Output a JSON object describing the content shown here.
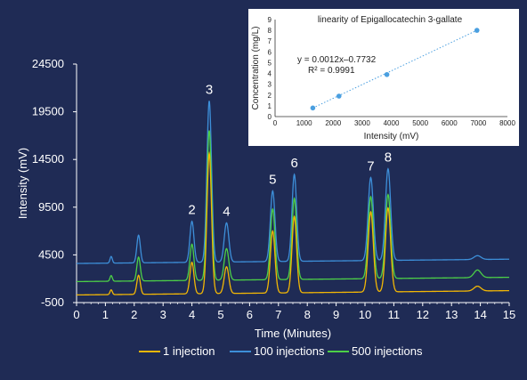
{
  "colors": {
    "background": "#1f2b55",
    "axis": "#ffffff",
    "series_1_injection": "#f2b705",
    "series_100_injections": "#3d8fd9",
    "series_500_injections": "#4ccf47",
    "inset_background": "#ffffff",
    "inset_points": "#4a9fe0"
  },
  "chart_data": [
    {
      "type": "line",
      "xlabel": "Time (Minutes)",
      "ylabel": "Intensity (mV)",
      "xlim": [
        0,
        15
      ],
      "ylim": [
        -500,
        24500
      ],
      "x_ticks": [
        "0",
        "1",
        "2",
        "3",
        "4",
        "5",
        "6",
        "7",
        "8",
        "9",
        "10",
        "11",
        "12",
        "13",
        "14",
        "15"
      ],
      "y_ticks": [
        "-500",
        "4500",
        "9500",
        "14500",
        "19500",
        "24500"
      ],
      "grid": false,
      "legend_position": "bottom",
      "peaks": [
        {
          "label": "2",
          "time": 4.0
        },
        {
          "label": "3",
          "time": 4.6
        },
        {
          "label": "4",
          "time": 5.2
        },
        {
          "label": "5",
          "time": 6.8
        },
        {
          "label": "6",
          "time": 7.55
        },
        {
          "label": "7",
          "time": 10.2
        },
        {
          "label": "8",
          "time": 10.8
        }
      ],
      "series": [
        {
          "name": "1 injection",
          "baseline": 300,
          "peaks": [
            {
              "time": 1.2,
              "height": 500,
              "width": 0.04
            },
            {
              "time": 2.15,
              "height": 2000,
              "width": 0.06
            },
            {
              "time": 4.0,
              "height": 3300,
              "width": 0.07
            },
            {
              "time": 4.6,
              "height": 14700,
              "width": 0.08
            },
            {
              "time": 5.2,
              "height": 2800,
              "width": 0.08
            },
            {
              "time": 6.8,
              "height": 6500,
              "width": 0.08
            },
            {
              "time": 7.55,
              "height": 8000,
              "width": 0.08
            },
            {
              "time": 10.2,
              "height": 8400,
              "width": 0.09
            },
            {
              "time": 10.8,
              "height": 8800,
              "width": 0.09
            },
            {
              "time": 13.9,
              "height": 500,
              "width": 0.12
            }
          ]
        },
        {
          "name": "100 injections",
          "baseline": 3600,
          "peaks": [
            {
              "time": 1.2,
              "height": 700,
              "width": 0.04
            },
            {
              "time": 2.15,
              "height": 2900,
              "width": 0.06
            },
            {
              "time": 4.0,
              "height": 4300,
              "width": 0.07
            },
            {
              "time": 4.6,
              "height": 16900,
              "width": 0.08
            },
            {
              "time": 5.2,
              "height": 4100,
              "width": 0.08
            },
            {
              "time": 6.8,
              "height": 7400,
              "width": 0.08
            },
            {
              "time": 7.55,
              "height": 9100,
              "width": 0.08
            },
            {
              "time": 10.2,
              "height": 8700,
              "width": 0.09
            },
            {
              "time": 10.8,
              "height": 9600,
              "width": 0.09
            },
            {
              "time": 13.9,
              "height": 400,
              "width": 0.12
            }
          ]
        },
        {
          "name": "500 injections",
          "baseline": 1700,
          "peaks": [
            {
              "time": 1.2,
              "height": 600,
              "width": 0.04
            },
            {
              "time": 2.15,
              "height": 2500,
              "width": 0.06
            },
            {
              "time": 4.0,
              "height": 3800,
              "width": 0.07
            },
            {
              "time": 4.6,
              "height": 15700,
              "width": 0.08
            },
            {
              "time": 5.2,
              "height": 3300,
              "width": 0.08
            },
            {
              "time": 6.8,
              "height": 7400,
              "width": 0.08
            },
            {
              "time": 7.55,
              "height": 8500,
              "width": 0.08
            },
            {
              "time": 10.2,
              "height": 8600,
              "width": 0.09
            },
            {
              "time": 10.8,
              "height": 8800,
              "width": 0.09
            },
            {
              "time": 13.9,
              "height": 800,
              "width": 0.12
            }
          ]
        }
      ]
    },
    {
      "type": "scatter",
      "title": "linearity of Epigallocatechin 3-gallate",
      "xlabel": "Intensity (mV)",
      "ylabel": "Concentration (mg/L)",
      "xlim": [
        0,
        8000
      ],
      "ylim": [
        0,
        9
      ],
      "x_ticks": [
        "0",
        "1000",
        "2000",
        "3000",
        "4000",
        "5000",
        "6000",
        "7000",
        "8000"
      ],
      "y_ticks": [
        "0",
        "1",
        "2",
        "3",
        "4",
        "5",
        "6",
        "7",
        "8",
        "9"
      ],
      "equation": "y = 0.0012x–0.7732",
      "r_squared": "R² = 0.9991",
      "trendline": "linear, dotted",
      "points": [
        {
          "x": 1300,
          "y": 0.8
        },
        {
          "x": 2200,
          "y": 1.9
        },
        {
          "x": 3850,
          "y": 3.9
        },
        {
          "x": 6950,
          "y": 8.0
        }
      ]
    }
  ]
}
